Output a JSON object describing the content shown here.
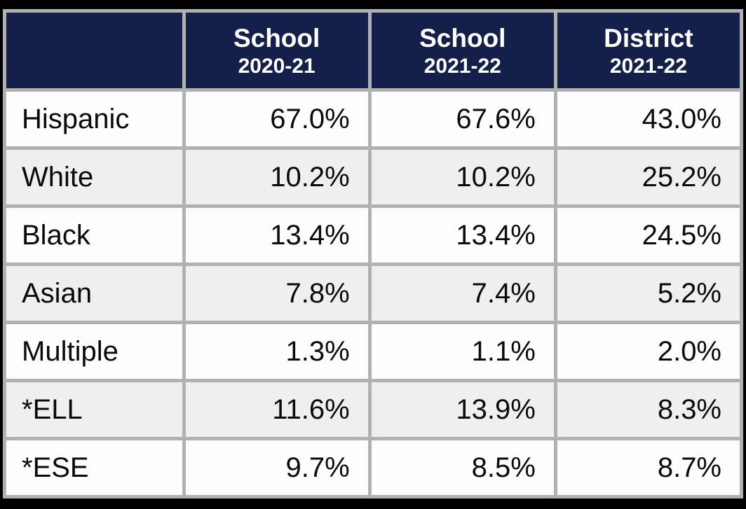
{
  "colors": {
    "frame_background": "#000000",
    "header_background": "#14204A",
    "header_text": "#FFFFFF",
    "grid_line": "#AFB2B2",
    "row_white": "#FDFDFE",
    "row_alt": "#EFEFEF",
    "body_text": "#0A0A0A"
  },
  "chart_data": {
    "type": "table",
    "columns": [
      {
        "line1": "",
        "line2": ""
      },
      {
        "line1": "School",
        "line2": "2020-21"
      },
      {
        "line1": "School",
        "line2": "2021-22"
      },
      {
        "line1": "District",
        "line2": "2021-22"
      }
    ],
    "rows": [
      {
        "label": "Hispanic",
        "values": [
          "67.0%",
          "67.6%",
          "43.0%"
        ]
      },
      {
        "label": "White",
        "values": [
          "10.2%",
          "10.2%",
          "25.2%"
        ]
      },
      {
        "label": "Black",
        "values": [
          "13.4%",
          "13.4%",
          "24.5%"
        ]
      },
      {
        "label": "Asian",
        "values": [
          "7.8%",
          "7.4%",
          "5.2%"
        ]
      },
      {
        "label": "Multiple",
        "values": [
          "1.3%",
          "1.1%",
          "2.0%"
        ]
      },
      {
        "label": "*ELL",
        "values": [
          "11.6%",
          "13.9%",
          "8.3%"
        ]
      },
      {
        "label": "*ESE",
        "values": [
          "9.7%",
          "8.5%",
          "8.7%"
        ]
      }
    ]
  }
}
